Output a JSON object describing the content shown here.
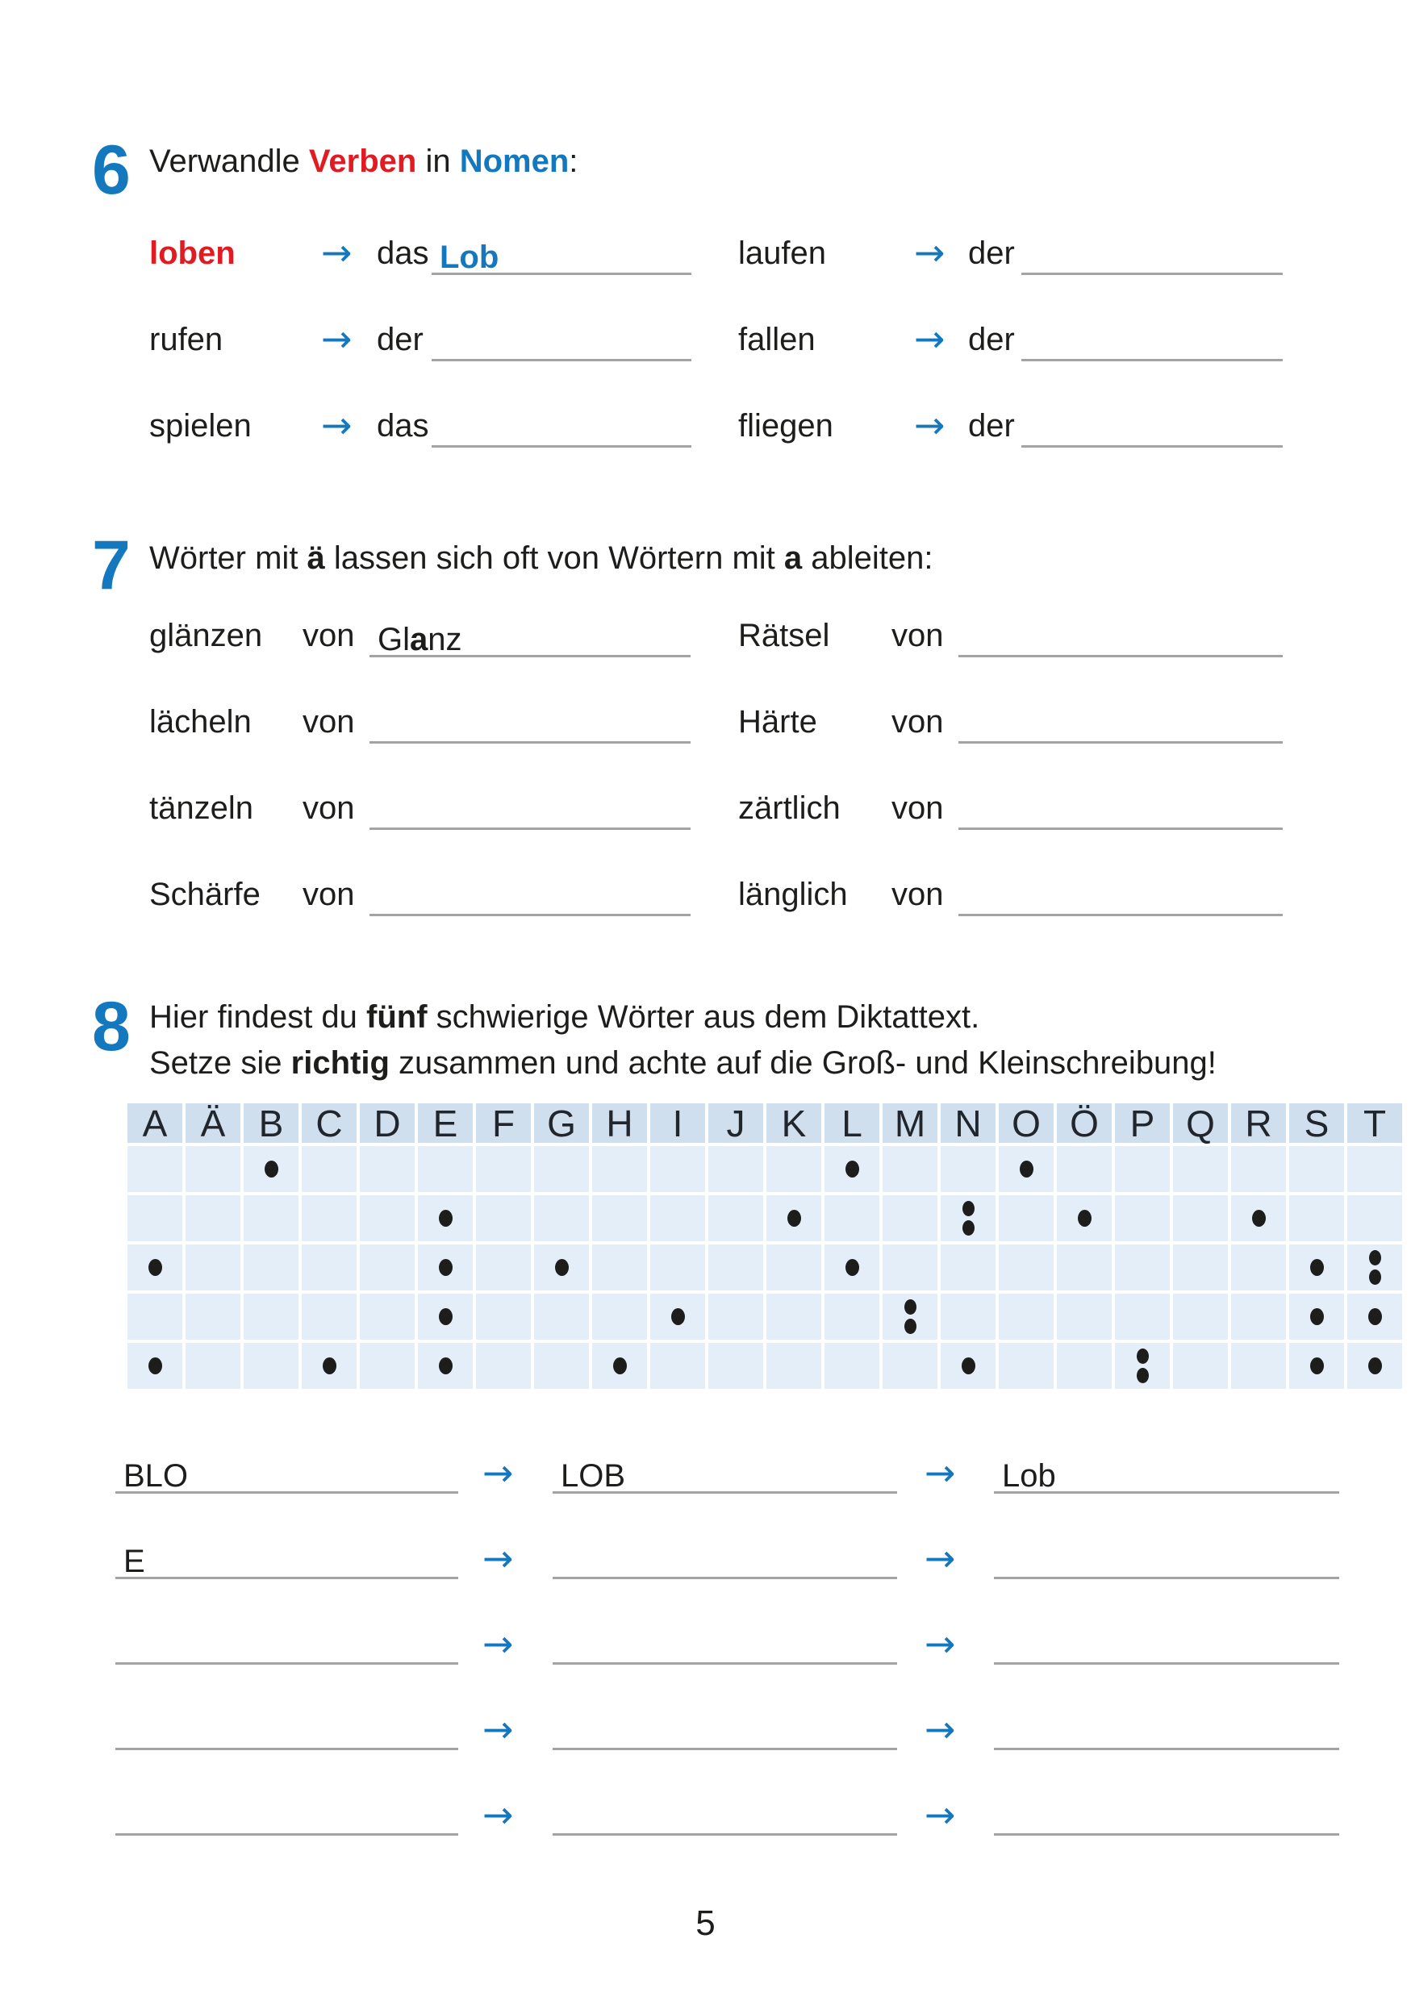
{
  "colors": {
    "blue": "#1478be",
    "red": "#e01b22",
    "line_gray": "#a3a3a3",
    "grid_header_bg": "#cfdfee",
    "grid_cell_bg": "#e4eef9"
  },
  "arrow": "→",
  "ex6": {
    "number": "6",
    "title": {
      "pre": "Verwandle ",
      "red": "Verben",
      "mid": " in ",
      "blue": "Nomen",
      "post": ":"
    },
    "rows": [
      {
        "l_word": "loben",
        "l_red": true,
        "l_article": "das",
        "l_answer": "Lob",
        "r_word": "laufen",
        "r_article": "der",
        "r_answer": ""
      },
      {
        "l_word": "rufen",
        "l_red": false,
        "l_article": "der",
        "l_answer": "",
        "r_word": "fallen",
        "r_article": "der",
        "r_answer": ""
      },
      {
        "l_word": "spielen",
        "l_red": false,
        "l_article": "das",
        "l_answer": "",
        "r_word": "fliegen",
        "r_article": "der",
        "r_answer": ""
      }
    ]
  },
  "ex7": {
    "number": "7",
    "title": {
      "pre": "Wörter mit ",
      "b1": "ä",
      "mid": " lassen sich oft von Wörtern mit ",
      "b2": "a",
      "post": " ableiten:"
    },
    "von": "von",
    "rows": [
      {
        "l_word": "glänzen",
        "l_answer": [
          {
            "t": "Gl",
            "b": false
          },
          {
            "t": "a",
            "b": true
          },
          {
            "t": "nz",
            "b": false
          }
        ],
        "r_word": "Rätsel",
        "r_answer": []
      },
      {
        "l_word": "lächeln",
        "l_answer": [],
        "r_word": "Härte",
        "r_answer": []
      },
      {
        "l_word": "tänzeln",
        "l_answer": [],
        "r_word": "zärtlich",
        "r_answer": []
      },
      {
        "l_word": "Schärfe",
        "l_answer": [],
        "r_word": "länglich",
        "r_answer": []
      }
    ]
  },
  "ex8": {
    "number": "8",
    "line1": {
      "pre": "Hier findest du ",
      "bold": "fünf",
      "post": " schwierige Wörter aus dem Diktattext."
    },
    "line2": {
      "pre": "Setze sie ",
      "bold": "richtig",
      "post": " zusammen und achte auf die Groß- und Kleinschreibung!"
    },
    "grid": {
      "columns": [
        "A",
        "Ä",
        "B",
        "C",
        "D",
        "E",
        "F",
        "G",
        "H",
        "I",
        "J",
        "K",
        "L",
        "M",
        "N",
        "O",
        "Ö",
        "P",
        "Q",
        "R",
        "S",
        "T"
      ],
      "dot_rows": [
        [
          0,
          0,
          1,
          0,
          0,
          0,
          0,
          0,
          0,
          0,
          0,
          0,
          1,
          0,
          0,
          1,
          0,
          0,
          0,
          0,
          0,
          0
        ],
        [
          0,
          0,
          0,
          0,
          0,
          1,
          0,
          0,
          0,
          0,
          0,
          1,
          0,
          0,
          2,
          0,
          1,
          0,
          0,
          1,
          0,
          0
        ],
        [
          1,
          0,
          0,
          0,
          0,
          1,
          0,
          1,
          0,
          0,
          0,
          0,
          1,
          0,
          0,
          0,
          0,
          0,
          0,
          0,
          1,
          2
        ],
        [
          0,
          0,
          0,
          0,
          0,
          1,
          0,
          0,
          0,
          1,
          0,
          0,
          0,
          2,
          0,
          0,
          0,
          0,
          0,
          0,
          1,
          1
        ],
        [
          1,
          0,
          0,
          1,
          0,
          1,
          0,
          0,
          1,
          0,
          0,
          0,
          0,
          0,
          1,
          0,
          0,
          2,
          0,
          0,
          1,
          1
        ]
      ]
    },
    "answers": [
      [
        "BLO",
        "LOB",
        "Lob"
      ],
      [
        "E",
        "",
        ""
      ],
      [
        "",
        "",
        ""
      ],
      [
        "",
        "",
        ""
      ],
      [
        "",
        "",
        ""
      ]
    ]
  },
  "page_number": "5"
}
